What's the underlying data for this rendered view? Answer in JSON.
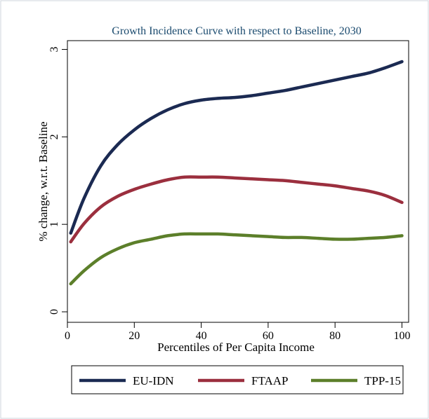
{
  "chart_data": {
    "type": "line",
    "title": "Growth Incidence Curve with respect to Baseline, 2030",
    "xlabel": "Percentiles of Per Capita Income",
    "ylabel": "% change, w.r.t. Baseline",
    "xlim": [
      0,
      102
    ],
    "ylim": [
      -0.12,
      3.1
    ],
    "xticks": [
      0,
      20,
      40,
      60,
      80,
      100
    ],
    "yticks": [
      0,
      1,
      2,
      3
    ],
    "legend_position": "bottom",
    "x": [
      1,
      5,
      10,
      15,
      20,
      25,
      30,
      35,
      40,
      45,
      50,
      55,
      60,
      65,
      70,
      75,
      80,
      85,
      90,
      95,
      100
    ],
    "series": [
      {
        "name": "EU-IDN",
        "color": "#1b2a52",
        "values": [
          0.9,
          1.3,
          1.67,
          1.91,
          2.08,
          2.21,
          2.31,
          2.38,
          2.42,
          2.44,
          2.45,
          2.47,
          2.5,
          2.53,
          2.57,
          2.61,
          2.65,
          2.69,
          2.73,
          2.79,
          2.86
        ]
      },
      {
        "name": "FTAAP",
        "color": "#9b2f3e",
        "values": [
          0.8,
          1.01,
          1.2,
          1.32,
          1.4,
          1.46,
          1.51,
          1.54,
          1.54,
          1.54,
          1.53,
          1.52,
          1.51,
          1.5,
          1.48,
          1.46,
          1.44,
          1.41,
          1.38,
          1.33,
          1.25
        ]
      },
      {
        "name": "TPP-15",
        "color": "#5c7f2a",
        "values": [
          0.32,
          0.47,
          0.62,
          0.72,
          0.79,
          0.83,
          0.87,
          0.89,
          0.89,
          0.89,
          0.88,
          0.87,
          0.86,
          0.85,
          0.85,
          0.84,
          0.83,
          0.83,
          0.84,
          0.85,
          0.87
        ]
      }
    ]
  }
}
